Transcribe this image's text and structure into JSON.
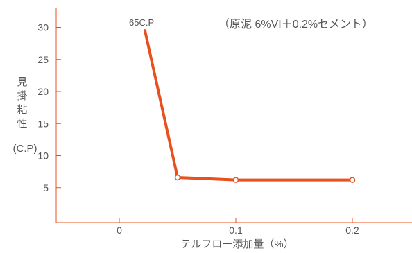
{
  "chart_data": {
    "type": "line",
    "title": "",
    "xlabel": "テルフロー添加量（%）",
    "ylabel_chars": [
      "見",
      "掛",
      "粘",
      "性"
    ],
    "ylabel_unit": "(C.P)",
    "note": "（原泥 6%VI＋0.2%セメント）",
    "annotation": "65C.P",
    "x_ticks": [
      "0",
      "0.1",
      "0.2"
    ],
    "y_ticks": [
      "5",
      "10",
      "15",
      "20",
      "25",
      "30"
    ],
    "xlim": [
      -0.05,
      0.25
    ],
    "ylim": [
      0,
      33
    ],
    "grid": false,
    "series": [
      {
        "color": "#e8501e",
        "x": [
          0.05,
          0.1,
          0.2
        ],
        "y": [
          6.6,
          6.2,
          6.2
        ],
        "lead_in": {
          "x": [
            0.022,
            0.05
          ],
          "y": [
            29.5,
            6.6
          ]
        }
      }
    ]
  }
}
